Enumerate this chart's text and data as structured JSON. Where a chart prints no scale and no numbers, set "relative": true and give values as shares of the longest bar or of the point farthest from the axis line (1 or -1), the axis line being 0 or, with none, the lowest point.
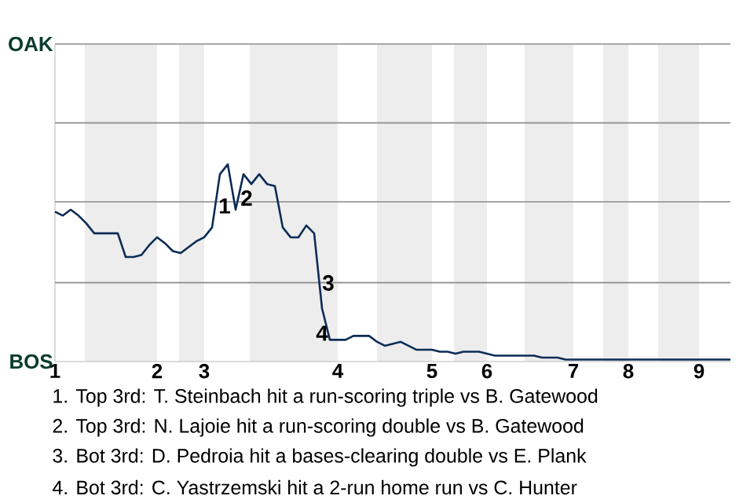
{
  "chart_data": {
    "type": "line",
    "color": "#0c2c56",
    "relative": true,
    "categories": [
      "1",
      null,
      null,
      null,
      null,
      null,
      null,
      null,
      null,
      null,
      null,
      null,
      null,
      "2",
      null,
      null,
      null,
      null,
      null,
      "3",
      null,
      null,
      null,
      null,
      null,
      null,
      null,
      null,
      null,
      null,
      null,
      null,
      null,
      null,
      null,
      null,
      "4",
      null,
      null,
      null,
      null,
      null,
      null,
      null,
      null,
      null,
      null,
      null,
      "5",
      null,
      null,
      null,
      null,
      null,
      null,
      "6",
      null,
      null,
      null,
      null,
      null,
      null,
      null,
      null,
      null,
      null,
      "7",
      null,
      null,
      null,
      null,
      null,
      null,
      "8",
      null,
      null,
      null,
      null,
      null,
      null,
      null,
      null,
      "9",
      null,
      null,
      null,
      null
    ],
    "values": [
      0.76,
      0.74,
      0.77,
      0.74,
      0.7,
      0.65,
      0.65,
      0.65,
      0.65,
      0.53,
      0.53,
      0.54,
      0.59,
      0.63,
      0.6,
      0.56,
      0.55,
      0.58,
      0.61,
      0.63,
      0.68,
      0.95,
      1,
      0.77,
      0.95,
      0.9,
      0.95,
      0.9,
      0.89,
      0.68,
      0.63,
      0.63,
      0.69,
      0.65,
      0.27,
      0.11,
      0.11,
      0.11,
      0.13,
      0.13,
      0.13,
      0.1,
      0.08,
      0.09,
      0.1,
      0.08,
      0.06,
      0.06,
      0.06,
      0.05,
      0.05,
      0.04,
      0.05,
      0.05,
      0.05,
      0.04,
      0.03,
      0.03,
      0.03,
      0.03,
      0.03,
      0.03,
      0.02,
      0.02,
      0.02,
      0.01,
      0.01,
      0.01,
      0.01,
      0.01,
      0.01,
      0.01,
      0.01,
      0.01,
      0.01,
      0.01,
      0.01,
      0.01,
      0.01,
      0.01,
      0.01,
      0.01,
      0.01,
      0.01,
      0.01,
      0.01,
      0.01
    ],
    "marker": "none",
    "line_style": "solid",
    "ref_lines": [
      {
        "axis": "y",
        "value": 0.4,
        "color": "#8c8c8c"
      },
      {
        "axis": "y",
        "value": 0.81,
        "color": "#8c8c8c"
      },
      {
        "axis": "y",
        "value": 1.21,
        "color": "#8c8c8c"
      },
      {
        "axis": "y",
        "value": 1.61,
        "color": "#8c8c8c"
      }
    ],
    "annotations": [
      "OAK",
      "BOS",
      "1",
      "2",
      "3",
      "4",
      "1. Top 3rd: T. Steinbach hit a run-scoring triple vs B. Gatewood",
      "2. Top 3rd: N. Lajoie hit a run-scoring double vs B. Gatewood",
      "3. Bot 3rd: D. Pedroia hit a bases-clearing double vs E. Plank",
      "4. Bot 3rd: C. Yastrzemski hit a 2-run home run vs C. Hunter"
    ]
  }
}
